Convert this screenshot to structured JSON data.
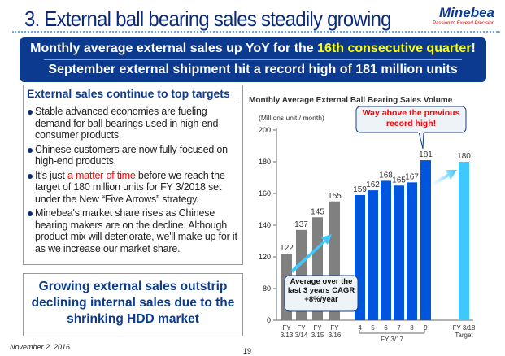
{
  "header": {
    "title": "3. External ball bearing sales steadily growing",
    "logo_name": "Minebea",
    "logo_tagline": "Passion to Exceed Precision"
  },
  "banner": {
    "line1_pre": "Monthly average external sales up YoY for the ",
    "line1_highlight": "16th consecutive quarter",
    "line1_post": "!",
    "line2": "September external shipment hit a record high of 181 million units",
    "highlight_color": "#ffff00",
    "background": "#0b3a8f"
  },
  "left_panel": {
    "heading": "External sales continue to top  targets",
    "bullets": [
      {
        "text": "Stable advanced economies are fueling demand for ball bearings used in high-end consumer products."
      },
      {
        "text": "Chinese customers are now fully focused on high-end products."
      },
      {
        "pre": "It's just ",
        "red": "a matter of time",
        "post": " before we reach the target of 180 million units for FY 3/2018 set under the New “Five Arrows” strategy."
      },
      {
        "text": "Minebea's market share rises as Chinese bearing makers are on the decline. Although product mix will deteriorate, we'll make up for it as we increase our market share."
      }
    ]
  },
  "summary_box": {
    "text": "Growing external sales outstrip declining internal sales due to the shrinking HDD market"
  },
  "footer": {
    "date": "November 2, 2016",
    "page": "19"
  },
  "chart_data": {
    "type": "bar",
    "title": "Monthly Average External Ball Bearing Sales Volume",
    "ylabel": "(Millions unit / month)",
    "yticks": [
      0,
      80,
      120,
      140,
      160,
      180,
      200
    ],
    "ylim": [
      0,
      200
    ],
    "axis_break": "between 0 and 120 (compressed)",
    "categories": [
      "FY 3/13",
      "FY 3/14",
      "FY 3/15",
      "FY 3/16",
      "4",
      "5",
      "6",
      "7",
      "8",
      "9",
      "FY 3/18 Target"
    ],
    "values": [
      122,
      137,
      145,
      155,
      159,
      162,
      168,
      165,
      167,
      181,
      180
    ],
    "colors": [
      "#808080",
      "#808080",
      "#808080",
      "#808080",
      "#0055dd",
      "#0055dd",
      "#0055dd",
      "#0055dd",
      "#0055dd",
      "#0055dd",
      "#3fc8ff"
    ],
    "group_label": "FY 3/17",
    "callout_record": "Way above the previous record high!",
    "callout_cagr": "Average over the last 3 years CAGR +8%/year",
    "grid": false
  }
}
